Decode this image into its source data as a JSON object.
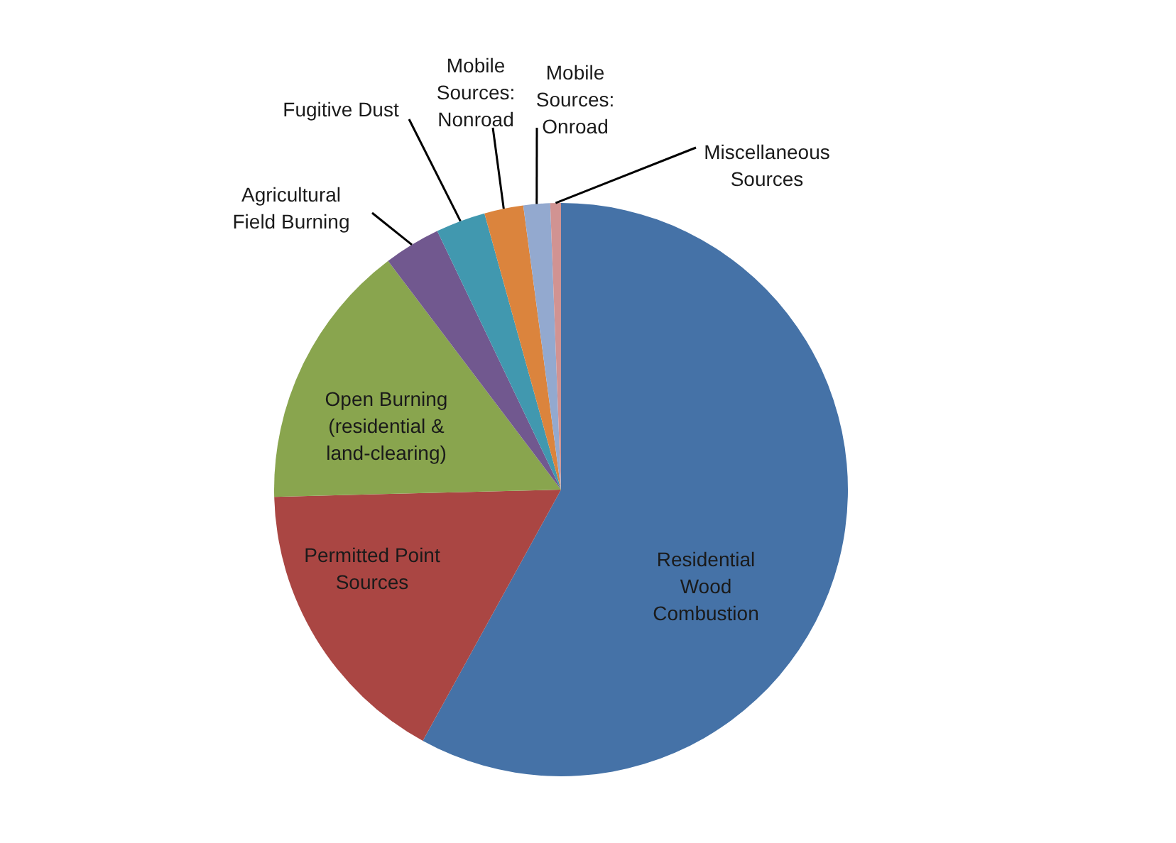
{
  "chart_data": {
    "type": "pie",
    "categories": [
      "Residential Wood Combustion",
      "Permitted Point Sources",
      "Open Burning (residential & land-clearing)",
      "Agricultural Field Burning",
      "Fugitive Dust",
      "Mobile Sources: Nonroad",
      "Mobile Sources: Onroad",
      "Miscellaneous Sources"
    ],
    "values": [
      58.0,
      16.6,
      15.1,
      3.2,
      2.8,
      2.2,
      1.5,
      0.6
    ],
    "colors": [
      "#4572a7",
      "#aa4643",
      "#89a54e",
      "#71588f",
      "#4198af",
      "#db843d",
      "#93a9cf",
      "#d19392"
    ],
    "legend": false
  }
}
